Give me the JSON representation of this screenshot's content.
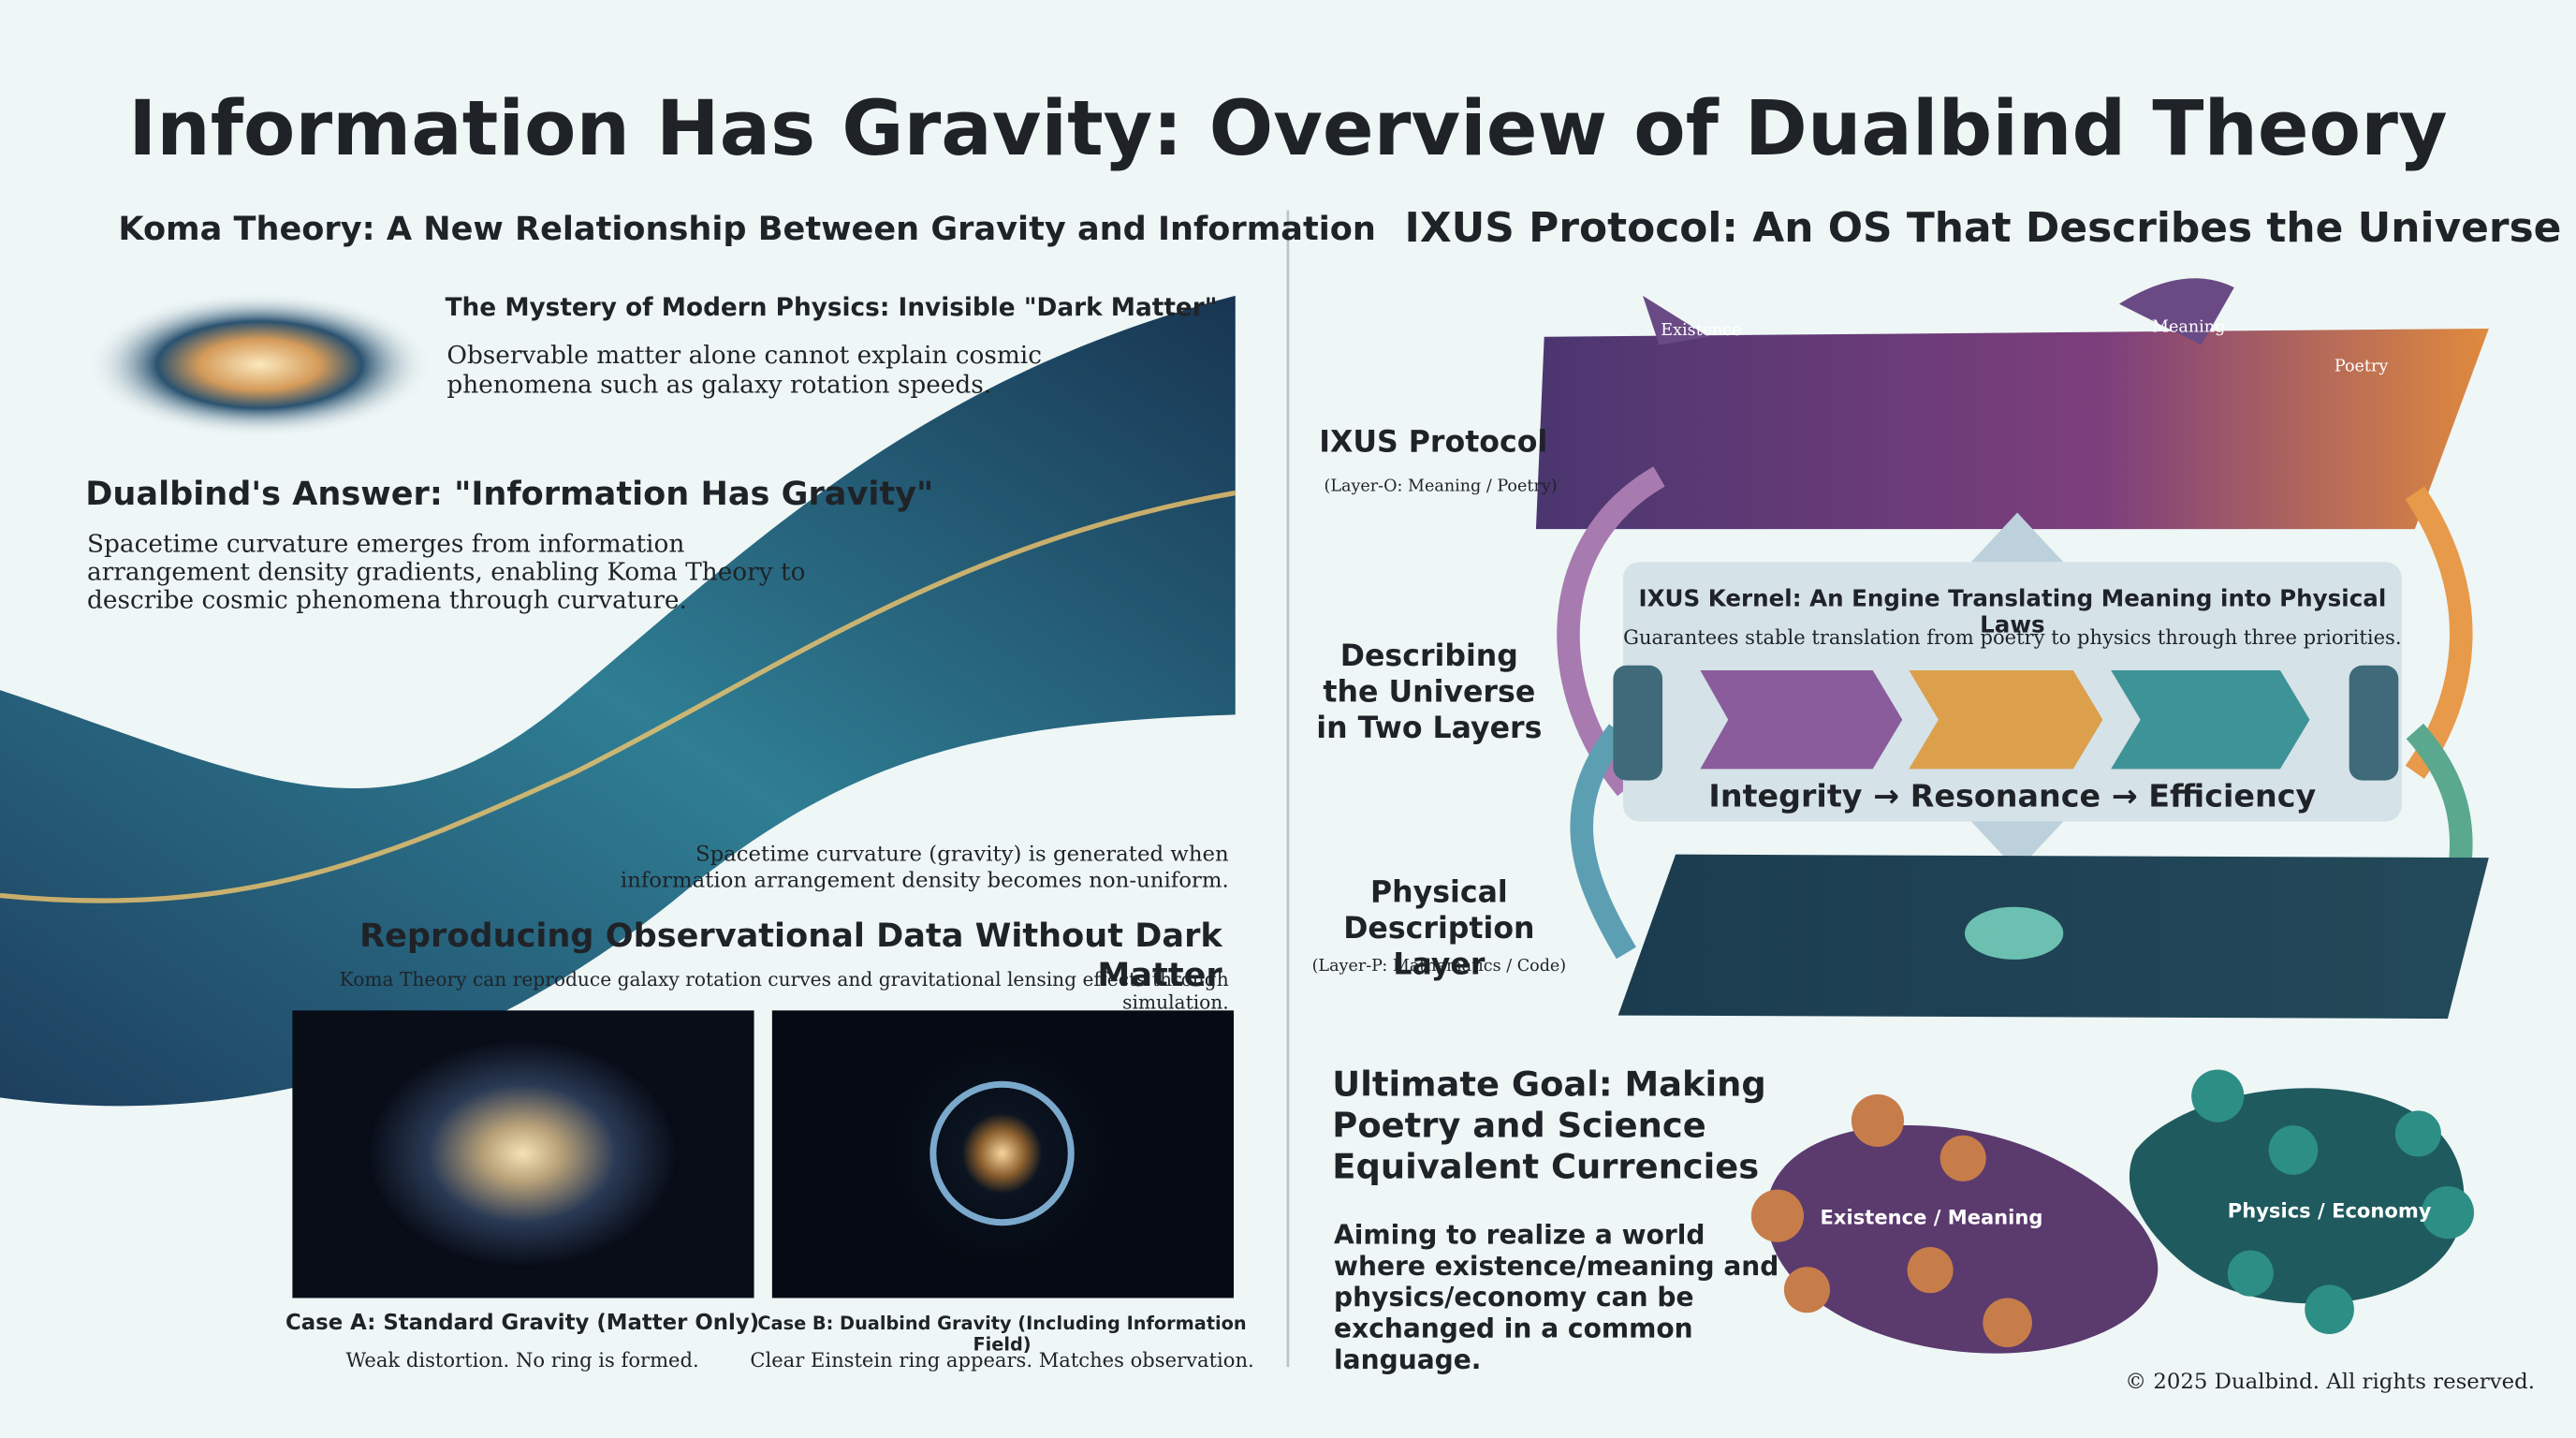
{
  "title": "Information Has Gravity: Overview of Dualbind Theory",
  "left": {
    "heading": "Koma Theory: A New Relationship Between Gravity and Information",
    "mystery": {
      "title": "The Mystery of Modern Physics: Invisible \"Dark Matter\"",
      "text": "Observable matter alone cannot explain cosmic phenomena such as galaxy rotation speeds."
    },
    "answer": {
      "title": "Dualbind's Answer: \"Information Has Gravity\"",
      "text": "Spacetime curvature emerges from information arrangement density gradients, enabling Koma Theory to describe cosmic phenomena through curvature."
    },
    "caption": "Spacetime curvature (gravity) is generated when information arrangement density becomes non-uniform.",
    "reproducing": {
      "title": "Reproducing Observational Data Without Dark Matter",
      "text": "Koma Theory can reproduce galaxy rotation curves and gravitational lensing effects through simulation."
    },
    "cases": [
      {
        "title": "Case A: Standard Gravity (Matter Only)",
        "text": "Weak distortion. No ring is formed."
      },
      {
        "title": "Case B: Dualbind Gravity (Including Information Field)",
        "text": "Clear Einstein ring appears. Matches observation."
      }
    ]
  },
  "right": {
    "heading": "IXUS Protocol: An OS That Describes the Universe",
    "top_layer": {
      "labels": [
        "Existence",
        "Meaning",
        "Poetry"
      ],
      "title": "IXUS Protocol",
      "subtitle": "(Layer-O: Meaning / Poetry)"
    },
    "side_label": "Describing the Universe in Two Layers",
    "kernel": {
      "title": "IXUS Kernel: An Engine Translating Meaning into Physical Laws",
      "text": "Guarantees stable translation from poetry to physics through three priorities.",
      "priorities": "Integrity → Resonance → Efficiency"
    },
    "bottom_layer": {
      "title": "Physical Description Layer",
      "subtitle": "(Layer-P: Mathematics / Code)"
    },
    "goal": {
      "title": "Ultimate Goal: Making Poetry and Science Equivalent Currencies",
      "text": "Aiming to realize a world where existence/meaning and physics/economy can be exchanged in a common language.",
      "loop_labels": [
        "Existence / Meaning",
        "Physics / Economy"
      ]
    }
  },
  "footer": "© 2025 Dualbind. All rights reserved."
}
